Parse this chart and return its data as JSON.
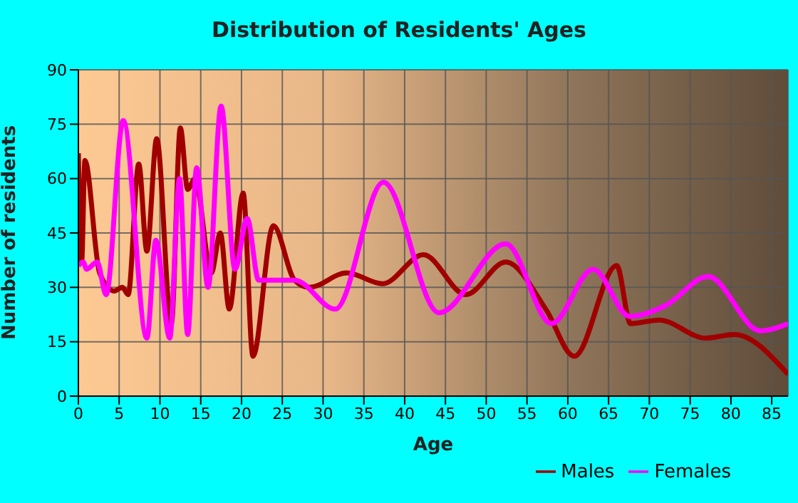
{
  "chart_data": {
    "type": "line",
    "title": "Distribution of Residents' Ages",
    "xlabel": "Age",
    "ylabel": "Number of residents",
    "xlim": [
      0,
      87
    ],
    "xticks": [
      0,
      5,
      10,
      15,
      20,
      25,
      30,
      35,
      40,
      45,
      50,
      55,
      60,
      65,
      70,
      75,
      80,
      85
    ],
    "ylim": [
      0,
      90
    ],
    "yticks": [
      0,
      15,
      30,
      45,
      60,
      75,
      90
    ],
    "grid": true,
    "legend": "bottom right",
    "marker": "none",
    "line_style": "solid",
    "series": [
      {
        "name": "Males",
        "color": "#a00000",
        "x": [
          0,
          0.4,
          0.8,
          2.6,
          4.4,
          5.4,
          6.1,
          7.4,
          8.4,
          9.6,
          11.4,
          12.5,
          13.4,
          14.3,
          16.3,
          17.4,
          18.5,
          20.2,
          21.4,
          23.9,
          26.5,
          28.3,
          32.9,
          37.3,
          42.3,
          47.5,
          52.4,
          57.3,
          60.8,
          66,
          67.7,
          71.2,
          76.9,
          80.4,
          87
        ],
        "values": [
          67,
          37,
          65,
          34,
          29,
          30,
          28,
          64,
          40,
          71,
          20,
          74,
          57,
          60,
          34,
          45,
          24,
          56,
          11,
          47,
          32,
          30,
          34,
          31,
          39,
          28,
          37,
          24,
          11,
          36,
          20,
          21,
          16,
          17,
          6
        ]
      },
      {
        "name": "Females",
        "color": "#ff00ff",
        "x": [
          0,
          0.6,
          1,
          2.3,
          3.4,
          5.5,
          8.4,
          9.5,
          11.2,
          12.4,
          13.4,
          14.5,
          15.9,
          17.5,
          19.2,
          20.7,
          22.1,
          26.5,
          31.5,
          37.4,
          44.2,
          52.4,
          58,
          63.1,
          67.6,
          72,
          77.2,
          83.6,
          87
        ],
        "values": [
          36,
          37,
          35,
          37,
          28,
          76,
          16,
          43,
          16,
          60,
          17,
          63,
          30,
          80,
          35,
          49,
          32,
          32,
          24,
          59,
          23,
          42,
          20,
          35,
          22,
          25,
          33,
          18,
          20
        ]
      }
    ]
  }
}
